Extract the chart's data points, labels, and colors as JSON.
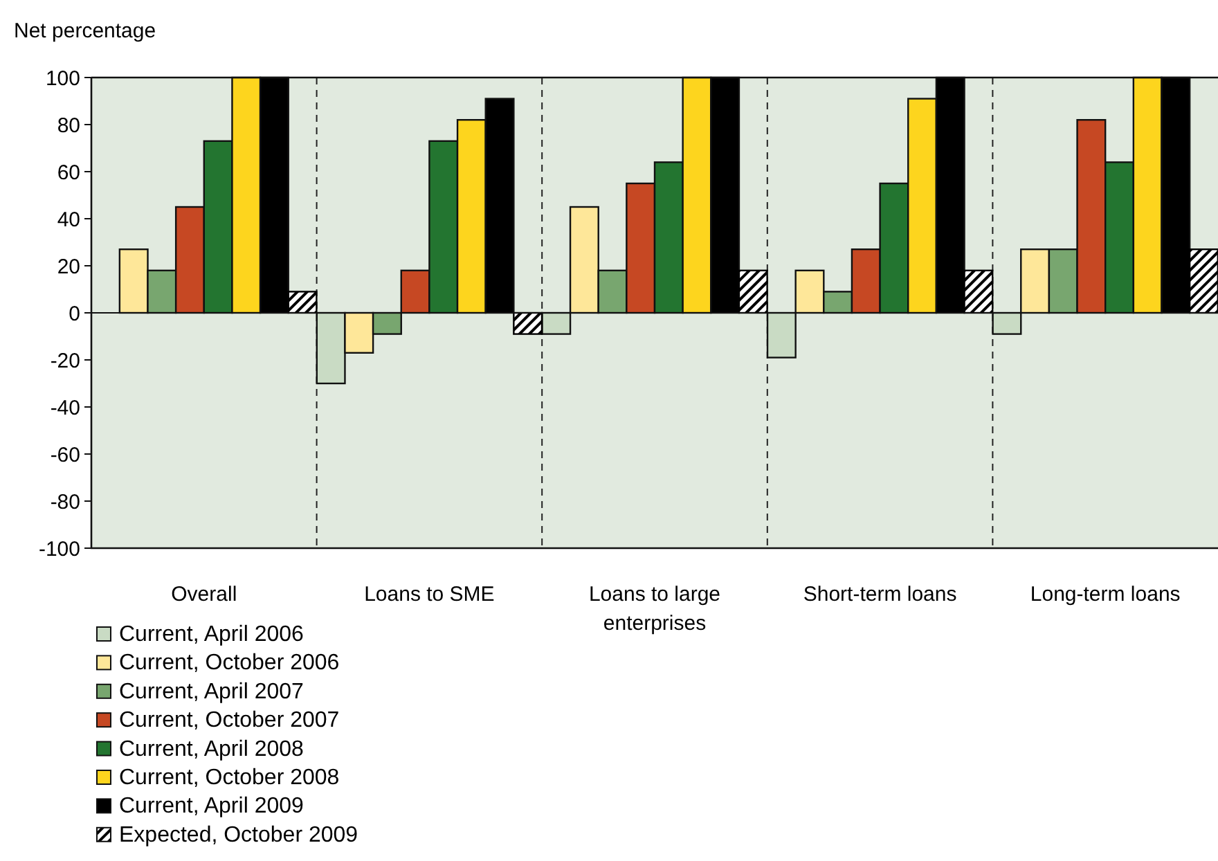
{
  "chart_data": {
    "type": "bar",
    "ylabel": "Net percentage",
    "categories": [
      "Overall",
      "Loans to SME",
      "Loans to large enterprises",
      "Short-term loans",
      "Long-term loans"
    ],
    "series": [
      {
        "name": "Current, April 2006",
        "color": "#c9dbc4",
        "values": [
          0,
          -30,
          -9,
          -19,
          -9
        ]
      },
      {
        "name": "Current, October 2006",
        "color": "#fee799",
        "values": [
          27,
          -17,
          45,
          18,
          27
        ]
      },
      {
        "name": "Current, April 2007",
        "color": "#78a66f",
        "values": [
          18,
          -9,
          18,
          9,
          27
        ]
      },
      {
        "name": "Current, October 2007",
        "color": "#c64823",
        "values": [
          45,
          18,
          55,
          27,
          82
        ]
      },
      {
        "name": "Current, April 2008",
        "color": "#237530",
        "values": [
          73,
          73,
          64,
          55,
          64
        ]
      },
      {
        "name": "Current, October 2008",
        "color": "#fdd51e",
        "values": [
          100,
          82,
          100,
          91,
          100
        ]
      },
      {
        "name": "Current, April 2009",
        "color": "#000000",
        "values": [
          100,
          91,
          100,
          100,
          100
        ]
      },
      {
        "name": "Expected, October 2009",
        "color": "#000000",
        "values": [
          9,
          -9,
          18,
          18,
          27
        ]
      }
    ],
    "ylim": [
      -100,
      100
    ],
    "yticks": [
      -100,
      -80,
      -60,
      -40,
      -20,
      0,
      20,
      40,
      60,
      80,
      100
    ],
    "grid": false,
    "legend": "bottom"
  }
}
